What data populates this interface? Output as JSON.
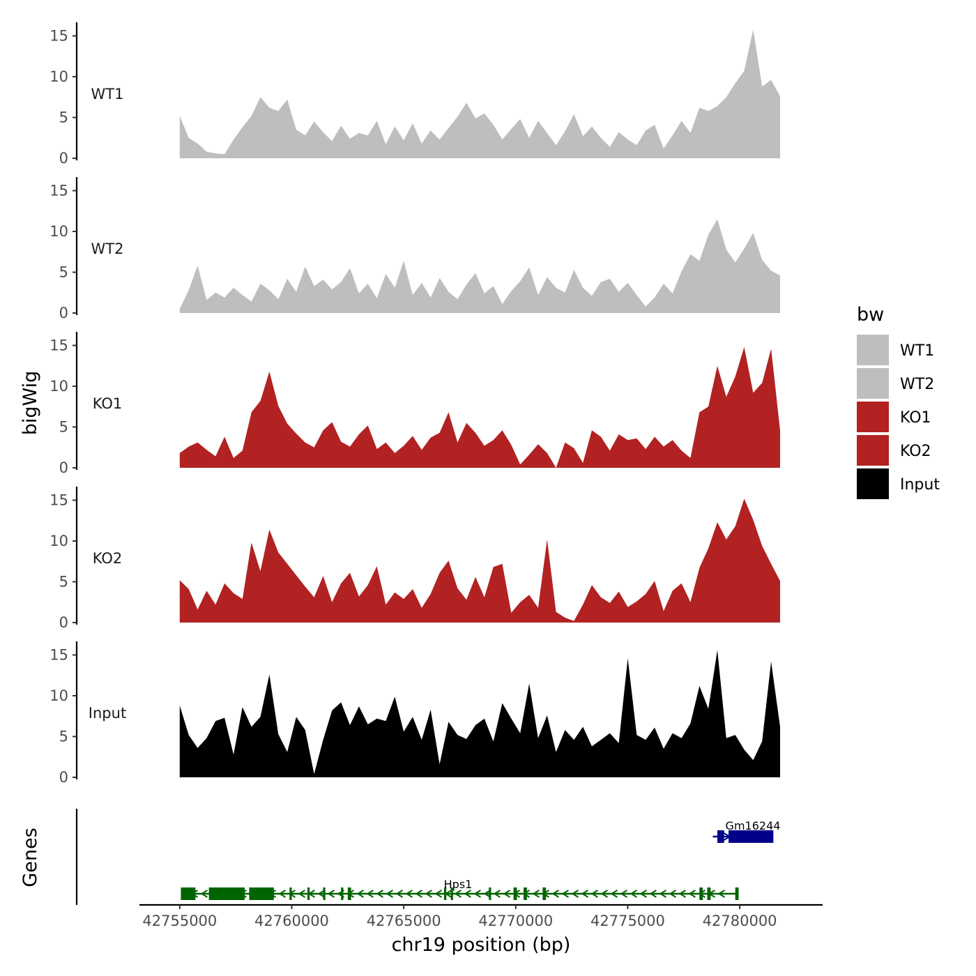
{
  "chart_data": {
    "type": "area",
    "title": "",
    "xlabel": "chr19 position (bp)",
    "ylabel": "bigWig",
    "genes_label": "Genes",
    "xlim": [
      42753200,
      42783700
    ],
    "x_ticks": [
      42755000,
      42760000,
      42765000,
      42770000,
      42775000,
      42780000
    ],
    "x_tick_labels": [
      "42755000",
      "42760000",
      "42765000",
      "42770000",
      "42775000",
      "42780000"
    ],
    "ylim": [
      0,
      16.5
    ],
    "y_ticks": [
      0,
      5,
      10,
      15
    ],
    "y_tick_labels": [
      "0",
      "5",
      "10",
      "15"
    ],
    "legend": {
      "title": "bw",
      "position": "right",
      "entries": [
        {
          "label": "WT1",
          "color": "#bebebe"
        },
        {
          "label": "WT2",
          "color": "#bebebe"
        },
        {
          "label": "KO1",
          "color": "#b22222"
        },
        {
          "label": "KO2",
          "color": "#b22222"
        },
        {
          "label": "Input",
          "color": "#000000"
        }
      ]
    },
    "series": [
      {
        "name": "WT1",
        "color": "#bebebe",
        "x": [
          42755000,
          42755400,
          42755800,
          42756200,
          42756600,
          42757000,
          42757400,
          42757800,
          42758200,
          42758600,
          42759000,
          42759400,
          42759800,
          42760200,
          42760600,
          42761000,
          42761400,
          42761800,
          42762200,
          42762600,
          42763000,
          42763400,
          42763800,
          42764200,
          42764600,
          42765000,
          42765400,
          42765800,
          42766200,
          42766600,
          42767000,
          42767400,
          42767800,
          42768200,
          42768600,
          42769000,
          42769400,
          42769800,
          42770200,
          42770600,
          42771000,
          42771400,
          42771800,
          42772200,
          42772600,
          42773000,
          42773400,
          42773800,
          42774200,
          42774600,
          42775000,
          42775400,
          42775800,
          42776200,
          42776600,
          42777000,
          42777400,
          42777800,
          42778200,
          42778600,
          42779000,
          42779400,
          42779800,
          42780200,
          42780600,
          42781000,
          42781400,
          42781800
        ],
        "values": [
          5.2,
          2.5,
          1.8,
          0.8,
          0.6,
          0.5,
          2.3,
          3.8,
          5.2,
          7.5,
          6.2,
          5.8,
          7.2,
          3.5,
          2.8,
          4.5,
          3.2,
          2.1,
          4.0,
          2.4,
          3.1,
          2.8,
          4.6,
          1.7,
          3.9,
          2.2,
          4.3,
          1.8,
          3.4,
          2.3,
          3.7,
          5.1,
          6.8,
          4.9,
          5.5,
          4.1,
          2.3,
          3.6,
          4.8,
          2.5,
          4.6,
          3.1,
          1.6,
          3.3,
          5.4,
          2.7,
          3.9,
          2.5,
          1.4,
          3.2,
          2.3,
          1.6,
          3.4,
          4.1,
          1.2,
          2.8,
          4.6,
          3.1,
          6.2,
          5.8,
          6.4,
          7.5,
          9.2,
          10.7,
          15.8,
          8.8,
          9.6,
          7.6
        ]
      },
      {
        "name": "WT2",
        "color": "#bebebe",
        "x": [
          42755000,
          42755400,
          42755800,
          42756200,
          42756600,
          42757000,
          42757400,
          42757800,
          42758200,
          42758600,
          42759000,
          42759400,
          42759800,
          42760200,
          42760600,
          42761000,
          42761400,
          42761800,
          42762200,
          42762600,
          42763000,
          42763400,
          42763800,
          42764200,
          42764600,
          42765000,
          42765400,
          42765800,
          42766200,
          42766600,
          42767000,
          42767400,
          42767800,
          42768200,
          42768600,
          42769000,
          42769400,
          42769800,
          42770200,
          42770600,
          42771000,
          42771400,
          42771800,
          42772200,
          42772600,
          42773000,
          42773400,
          42773800,
          42774200,
          42774600,
          42775000,
          42775400,
          42775800,
          42776200,
          42776600,
          42777000,
          42777400,
          42777800,
          42778200,
          42778600,
          42779000,
          42779400,
          42779800,
          42780200,
          42780600,
          42781000,
          42781400,
          42781800
        ],
        "values": [
          0.5,
          2.8,
          5.8,
          1.6,
          2.5,
          1.9,
          3.1,
          2.2,
          1.4,
          3.6,
          2.8,
          1.7,
          4.2,
          2.6,
          5.7,
          3.3,
          4.1,
          2.9,
          3.8,
          5.5,
          2.4,
          3.6,
          1.8,
          4.8,
          3.1,
          6.4,
          2.2,
          3.7,
          1.9,
          4.3,
          2.6,
          1.7,
          3.5,
          4.9,
          2.4,
          3.3,
          1.1,
          2.7,
          3.9,
          5.6,
          2.2,
          4.4,
          3.1,
          2.5,
          5.3,
          3.1,
          2.1,
          3.8,
          4.2,
          2.6,
          3.7,
          2.2,
          0.8,
          1.9,
          3.6,
          2.4,
          5.1,
          7.2,
          6.4,
          9.6,
          11.5,
          7.8,
          6.2,
          7.9,
          9.8,
          6.5,
          5.2,
          4.6
        ]
      },
      {
        "name": "KO1",
        "color": "#b22222",
        "x": [
          42755000,
          42755400,
          42755800,
          42756200,
          42756600,
          42757000,
          42757400,
          42757800,
          42758200,
          42758600,
          42759000,
          42759400,
          42759800,
          42760200,
          42760600,
          42761000,
          42761400,
          42761800,
          42762200,
          42762600,
          42763000,
          42763400,
          42763800,
          42764200,
          42764600,
          42765000,
          42765400,
          42765800,
          42766200,
          42766600,
          42767000,
          42767400,
          42767800,
          42768200,
          42768600,
          42769000,
          42769400,
          42769800,
          42770200,
          42770600,
          42771000,
          42771400,
          42771800,
          42772200,
          42772600,
          42773000,
          42773400,
          42773800,
          42774200,
          42774600,
          42775000,
          42775400,
          42775800,
          42776200,
          42776600,
          42777000,
          42777400,
          42777800,
          42778200,
          42778600,
          42779000,
          42779400,
          42779800,
          42780200,
          42780600,
          42781000,
          42781400,
          42781800
        ],
        "values": [
          1.8,
          2.6,
          3.1,
          2.2,
          1.4,
          3.8,
          1.2,
          2.1,
          6.8,
          8.2,
          11.8,
          7.6,
          5.4,
          4.2,
          3.1,
          2.5,
          4.6,
          5.6,
          3.2,
          2.6,
          4.1,
          5.2,
          2.3,
          3.1,
          1.8,
          2.7,
          3.9,
          2.2,
          3.7,
          4.3,
          6.8,
          3.1,
          5.5,
          4.3,
          2.7,
          3.4,
          4.6,
          2.8,
          0.4,
          1.6,
          2.9,
          1.8,
          0.0,
          3.1,
          2.4,
          0.6,
          4.6,
          3.8,
          2.1,
          4.1,
          3.4,
          3.6,
          2.3,
          3.8,
          2.6,
          3.4,
          2.1,
          1.2,
          6.8,
          7.5,
          12.5,
          8.7,
          11.2,
          14.8,
          9.2,
          10.4,
          14.6,
          4.6
        ]
      },
      {
        "name": "KO2",
        "color": "#b22222",
        "x": [
          42755000,
          42755400,
          42755800,
          42756200,
          42756600,
          42757000,
          42757400,
          42757800,
          42758200,
          42758600,
          42759000,
          42759400,
          42759800,
          42760200,
          42760600,
          42761000,
          42761400,
          42761800,
          42762200,
          42762600,
          42763000,
          42763400,
          42763800,
          42764200,
          42764600,
          42765000,
          42765400,
          42765800,
          42766200,
          42766600,
          42767000,
          42767400,
          42767800,
          42768200,
          42768600,
          42769000,
          42769400,
          42769800,
          42770200,
          42770600,
          42771000,
          42771400,
          42771800,
          42772200,
          42772600,
          42773000,
          42773400,
          42773800,
          42774200,
          42774600,
          42775000,
          42775400,
          42775800,
          42776200,
          42776600,
          42777000,
          42777400,
          42777800,
          42778200,
          42778600,
          42779000,
          42779400,
          42779800,
          42780200,
          42780600,
          42781000,
          42781400,
          42781800
        ],
        "values": [
          5.2,
          4.1,
          1.6,
          3.9,
          2.2,
          4.8,
          3.6,
          2.9,
          9.8,
          6.3,
          11.4,
          8.6,
          7.2,
          5.8,
          4.4,
          3.1,
          5.7,
          2.5,
          4.8,
          6.1,
          3.2,
          4.6,
          6.9,
          2.2,
          3.7,
          2.9,
          4.1,
          1.8,
          3.5,
          6.1,
          7.6,
          4.2,
          2.8,
          5.6,
          3.1,
          6.8,
          7.2,
          1.2,
          2.5,
          3.4,
          1.8,
          10.2,
          1.3,
          0.6,
          0.2,
          2.2,
          4.6,
          3.1,
          2.4,
          3.8,
          1.9,
          2.6,
          3.5,
          5.1,
          1.4,
          3.9,
          4.8,
          2.5,
          6.7,
          9.1,
          12.3,
          10.2,
          11.8,
          15.2,
          12.6,
          9.4,
          7.2,
          5.1
        ]
      },
      {
        "name": "Input",
        "color": "#000000",
        "x": [
          42755000,
          42755400,
          42755800,
          42756200,
          42756600,
          42757000,
          42757400,
          42757800,
          42758200,
          42758600,
          42759000,
          42759400,
          42759800,
          42760200,
          42760600,
          42761000,
          42761400,
          42761800,
          42762200,
          42762600,
          42763000,
          42763400,
          42763800,
          42764200,
          42764600,
          42765000,
          42765400,
          42765800,
          42766200,
          42766600,
          42767000,
          42767400,
          42767800,
          42768200,
          42768600,
          42769000,
          42769400,
          42769800,
          42770200,
          42770600,
          42771000,
          42771400,
          42771800,
          42772200,
          42772600,
          42773000,
          42773400,
          42773800,
          42774200,
          42774600,
          42775000,
          42775400,
          42775800,
          42776200,
          42776600,
          42777000,
          42777400,
          42777800,
          42778200,
          42778600,
          42779000,
          42779400,
          42779800,
          42780200,
          42780600,
          42781000,
          42781400,
          42781800
        ],
        "values": [
          8.8,
          5.2,
          3.6,
          4.8,
          6.9,
          7.3,
          2.8,
          8.6,
          6.2,
          7.4,
          12.6,
          5.3,
          3.1,
          7.4,
          5.8,
          0.4,
          4.6,
          8.2,
          9.2,
          6.4,
          8.7,
          6.5,
          7.2,
          6.9,
          9.9,
          5.6,
          7.4,
          4.6,
          8.3,
          1.6,
          6.8,
          5.2,
          4.7,
          6.4,
          7.2,
          4.4,
          9.1,
          7.2,
          5.4,
          11.5,
          4.8,
          7.6,
          3.1,
          5.8,
          4.6,
          6.2,
          3.8,
          4.6,
          5.4,
          4.2,
          14.6,
          5.2,
          4.6,
          6.1,
          3.5,
          5.4,
          4.8,
          6.6,
          11.2,
          8.4,
          15.6,
          4.8,
          5.2,
          3.4,
          2.1,
          4.4,
          14.2,
          6.2
        ]
      }
    ],
    "genes": [
      {
        "name": "Gm16244",
        "start": 42778800,
        "end": 42781500,
        "strand": "+",
        "color": "#00008b",
        "exons": [
          [
            42779000,
            42779300
          ],
          [
            42779500,
            42781500
          ]
        ]
      },
      {
        "name": "Hps1",
        "start": 42755050,
        "end": 42779900,
        "strand": "-",
        "color": "#006400",
        "exons": [
          [
            42755050,
            42755700
          ],
          [
            42756300,
            42757900
          ],
          [
            42758100,
            42759200
          ],
          [
            42759900,
            42760000
          ],
          [
            42760700,
            42760800
          ],
          [
            42761400,
            42761500
          ],
          [
            42762200,
            42762300
          ],
          [
            42762500,
            42762650
          ],
          [
            42766800,
            42766900
          ],
          [
            42767100,
            42767200
          ],
          [
            42768800,
            42768900
          ],
          [
            42769900,
            42770050
          ],
          [
            42770350,
            42770500
          ],
          [
            42771200,
            42771350
          ],
          [
            42778200,
            42778350
          ],
          [
            42778550,
            42778700
          ],
          [
            42779800,
            42779950
          ]
        ]
      }
    ]
  }
}
